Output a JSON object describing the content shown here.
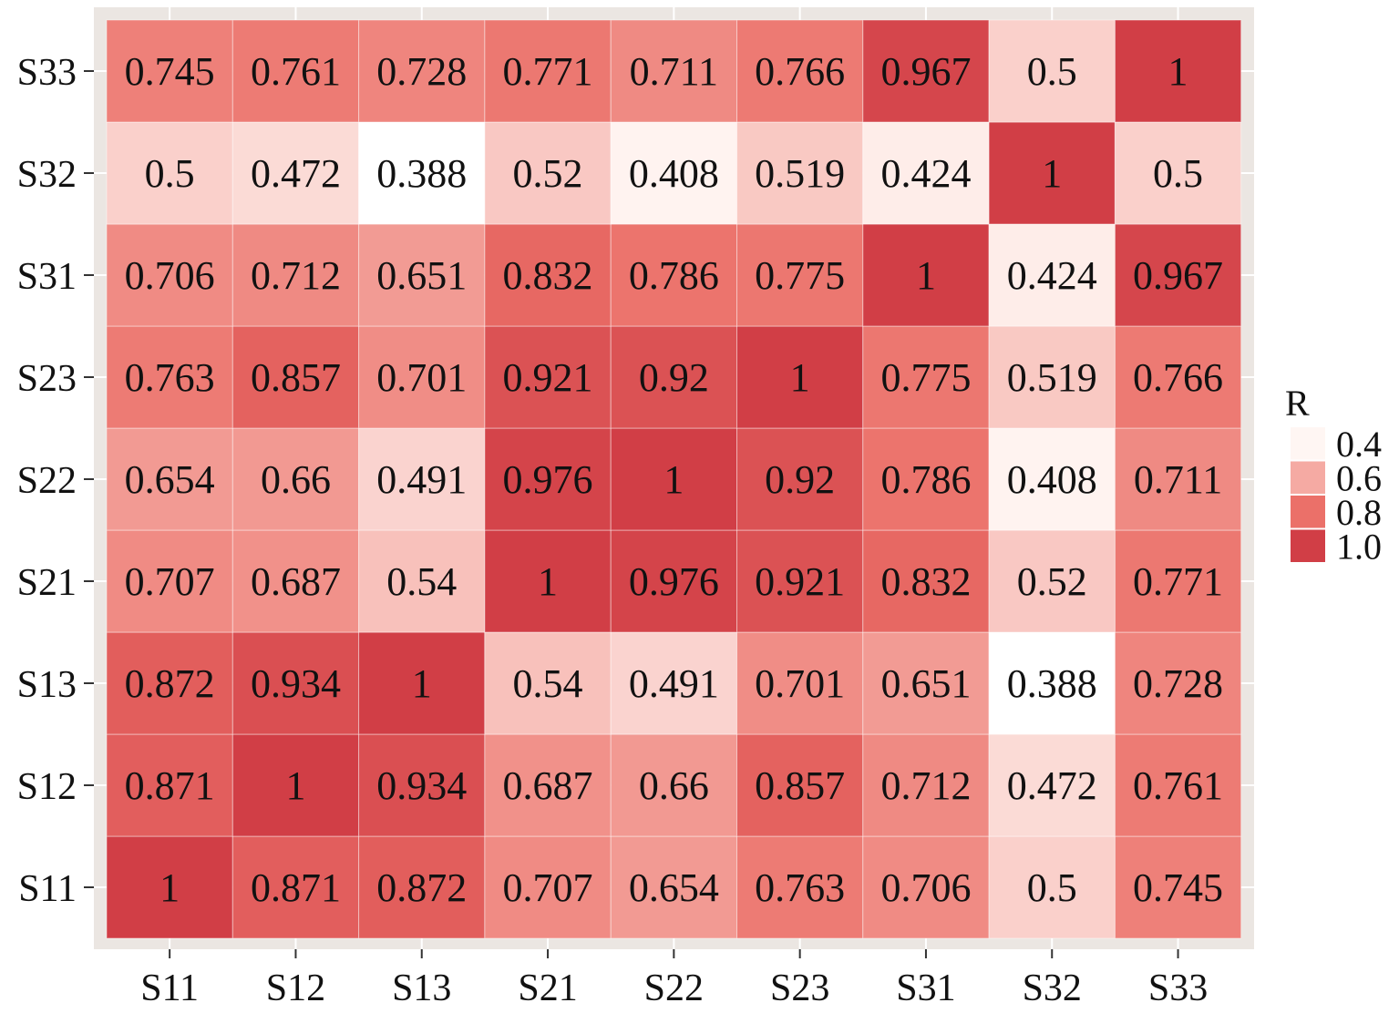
{
  "chart_data": {
    "type": "heatmap",
    "title": "",
    "xlabel": "",
    "ylabel": "",
    "categories_x": [
      "S11",
      "S12",
      "S13",
      "S21",
      "S22",
      "S23",
      "S31",
      "S32",
      "S33"
    ],
    "categories_y": [
      "S11",
      "S12",
      "S13",
      "S21",
      "S22",
      "S23",
      "S31",
      "S32",
      "S33"
    ],
    "values": [
      [
        1,
        0.871,
        0.872,
        0.707,
        0.654,
        0.763,
        0.706,
        0.5,
        0.745
      ],
      [
        0.871,
        1,
        0.934,
        0.687,
        0.66,
        0.857,
        0.712,
        0.472,
        0.761
      ],
      [
        0.872,
        0.934,
        1,
        0.54,
        0.491,
        0.701,
        0.651,
        0.388,
        0.728
      ],
      [
        0.707,
        0.687,
        0.54,
        1,
        0.976,
        0.921,
        0.832,
        0.52,
        0.771
      ],
      [
        0.654,
        0.66,
        0.491,
        0.976,
        1,
        0.92,
        0.786,
        0.408,
        0.711
      ],
      [
        0.763,
        0.857,
        0.701,
        0.921,
        0.92,
        1,
        0.775,
        0.519,
        0.766
      ],
      [
        0.706,
        0.712,
        0.651,
        0.832,
        0.786,
        0.775,
        1,
        0.424,
        0.967
      ],
      [
        0.5,
        0.472,
        0.388,
        0.52,
        0.408,
        0.519,
        0.424,
        1,
        0.5
      ],
      [
        0.745,
        0.761,
        0.728,
        0.771,
        0.711,
        0.766,
        0.967,
        0.5,
        1
      ]
    ],
    "value_labels": [
      [
        "1",
        "0.871",
        "0.872",
        "0.707",
        "0.654",
        "0.763",
        "0.706",
        "0.5",
        "0.745"
      ],
      [
        "0.871",
        "1",
        "0.934",
        "0.687",
        "0.66",
        "0.857",
        "0.712",
        "0.472",
        "0.761"
      ],
      [
        "0.872",
        "0.934",
        "1",
        "0.54",
        "0.491",
        "0.701",
        "0.651",
        "0.388",
        "0.728"
      ],
      [
        "0.707",
        "0.687",
        "0.54",
        "1",
        "0.976",
        "0.921",
        "0.832",
        "0.52",
        "0.771"
      ],
      [
        "0.654",
        "0.66",
        "0.491",
        "0.976",
        "1",
        "0.92",
        "0.786",
        "0.408",
        "0.711"
      ],
      [
        "0.763",
        "0.857",
        "0.701",
        "0.921",
        "0.92",
        "1",
        "0.775",
        "0.519",
        "0.766"
      ],
      [
        "0.706",
        "0.712",
        "0.651",
        "0.832",
        "0.786",
        "0.775",
        "1",
        "0.424",
        "0.967"
      ],
      [
        "0.5",
        "0.472",
        "0.388",
        "0.52",
        "0.408",
        "0.519",
        "0.424",
        "1",
        "0.5"
      ],
      [
        "0.745",
        "0.761",
        "0.728",
        "0.771",
        "0.711",
        "0.766",
        "0.967",
        "0.5",
        "1"
      ]
    ],
    "legend": {
      "title": "R",
      "placement": "right",
      "breaks": [
        0.4,
        0.6,
        0.8,
        1.0
      ],
      "labels": [
        "0.4",
        "0.6",
        "0.8",
        "1.0"
      ]
    },
    "color_scale": {
      "stops": [
        {
          "value": 0.388,
          "color": "#FFFFFF"
        },
        {
          "value": 0.4,
          "color": "#FFF6F3"
        },
        {
          "value": 0.6,
          "color": "#F5AAA3"
        },
        {
          "value": 0.8,
          "color": "#EB7069"
        },
        {
          "value": 1.0,
          "color": "#D13E46"
        }
      ]
    },
    "panel_background": "#EBE6E2",
    "grid": true
  }
}
